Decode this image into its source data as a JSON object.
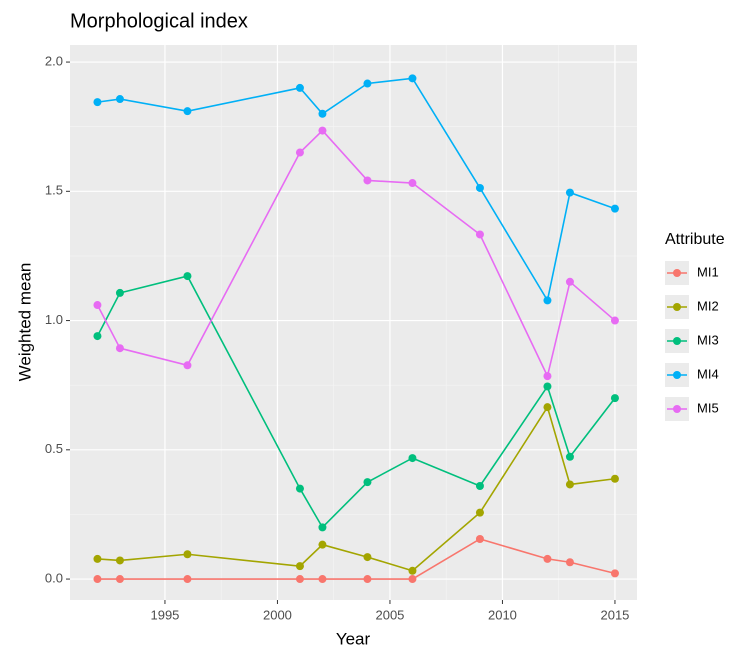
{
  "chart_data": {
    "type": "line",
    "title": "Morphological index",
    "x_label": "Year",
    "y_label": "Weighted mean",
    "legend_title": "Attribute",
    "x": [
      1992,
      1993,
      1996,
      2001,
      2002,
      2004,
      2006,
      2009,
      2012,
      2013,
      2015
    ],
    "series": [
      {
        "name": "MI1",
        "color": "#F8766D",
        "values": [
          0,
          0,
          0,
          0,
          0,
          0,
          0,
          0.155,
          0.078,
          0.065,
          0.022
        ]
      },
      {
        "name": "MI2",
        "color": "#A3A500",
        "values": [
          0.078,
          0.072,
          0.096,
          0.05,
          0.133,
          0.085,
          0.032,
          0.257,
          0.665,
          0.366,
          0.388
        ]
      },
      {
        "name": "MI3",
        "color": "#00BF7D",
        "values": [
          0.94,
          1.107,
          1.172,
          0.35,
          0.2,
          0.375,
          0.468,
          0.36,
          0.745,
          0.473,
          0.7
        ]
      },
      {
        "name": "MI4",
        "color": "#00B0F6",
        "values": [
          1.845,
          1.857,
          1.81,
          1.9,
          1.8,
          1.917,
          1.937,
          1.513,
          1.078,
          1.495,
          1.433
        ]
      },
      {
        "name": "MI5",
        "color": "#E76BF3",
        "values": [
          1.06,
          0.893,
          0.827,
          1.65,
          1.735,
          1.542,
          1.532,
          1.333,
          0.785,
          1.15,
          1.0
        ]
      }
    ],
    "xlim": [
      1990.78,
      2015.98
    ],
    "ylim": [
      -0.081,
      2.066
    ],
    "xticks": [
      1995,
      2000,
      2005,
      2010,
      2015
    ],
    "yticks": [
      {
        "value": 0,
        "label": "0.0"
      },
      {
        "value": 0.5,
        "label": "0.5"
      },
      {
        "value": 1,
        "label": "1.0"
      },
      {
        "value": 1.5,
        "label": "1.5"
      },
      {
        "value": 2,
        "label": "2.0"
      }
    ],
    "grid": true
  }
}
